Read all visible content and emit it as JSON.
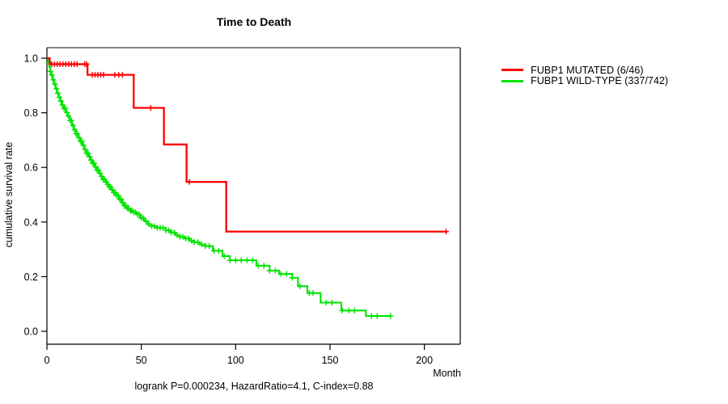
{
  "figure": {
    "title": "Time to Death",
    "x_axis_label": "Month",
    "y_axis_label": "cumulative survival rate",
    "footer": "logrank P=0.000234, HazardRatio=4.1, C-index=0.88"
  },
  "chart_data": {
    "type": "line",
    "subtype": "kaplan-meier-step-curves",
    "title": "Time to Death",
    "xlabel": "Month",
    "ylabel": "cumulative survival rate",
    "annotation": "logrank P=0.000234, HazardRatio=4.1, C-index=0.88",
    "xlim": [
      0,
      219
    ],
    "ylim": [
      0,
      1
    ],
    "xticks": [
      0,
      50,
      100,
      150,
      200
    ],
    "yticks": [
      "0.0",
      "0.2",
      "0.4",
      "0.6",
      "0.8",
      "1.0"
    ],
    "grid": false,
    "legend_position": "right-outside",
    "frame_colors": {
      "top": "#848484",
      "right": "#3f3f3f",
      "left": "#000000",
      "bottom": "#000000"
    },
    "series": [
      {
        "name": "FUBP1 MUTATED (6/46)",
        "color": "#ff0000",
        "end_month": 212,
        "steps": [
          [
            0,
            1.0
          ],
          [
            1.5,
            0.978
          ],
          [
            21.5,
            0.939
          ],
          [
            46,
            0.818
          ],
          [
            62,
            0.684
          ],
          [
            74,
            0.547
          ],
          [
            95,
            0.365
          ]
        ],
        "censor_months": [
          2.5,
          4,
          5.5,
          7,
          8.5,
          10,
          11.5,
          13,
          14.5,
          16,
          20,
          21,
          24,
          25.5,
          27,
          28.5,
          30,
          36,
          38,
          40,
          55,
          75.5,
          211.5
        ]
      },
      {
        "name": "FUBP1 WILD-TYPE (337/742)",
        "color": "#00e400",
        "end_month": 182.5,
        "steps": [
          [
            0,
            1.0
          ],
          [
            0.6,
            0.985
          ],
          [
            1.2,
            0.968
          ],
          [
            1.8,
            0.952
          ],
          [
            2.4,
            0.938
          ],
          [
            3.1,
            0.921
          ],
          [
            3.8,
            0.905
          ],
          [
            4.6,
            0.888
          ],
          [
            5.4,
            0.872
          ],
          [
            6.3,
            0.857
          ],
          [
            7.2,
            0.843
          ],
          [
            8.1,
            0.829
          ],
          [
            9.0,
            0.816
          ],
          [
            10.0,
            0.801
          ],
          [
            11.0,
            0.788
          ],
          [
            12.1,
            0.772
          ],
          [
            13.2,
            0.754
          ],
          [
            14.3,
            0.738
          ],
          [
            15.4,
            0.723
          ],
          [
            16.5,
            0.709
          ],
          [
            17.6,
            0.695
          ],
          [
            18.7,
            0.681
          ],
          [
            19.8,
            0.666
          ],
          [
            20.9,
            0.652
          ],
          [
            22.0,
            0.639
          ],
          [
            23.1,
            0.627
          ],
          [
            24.2,
            0.615
          ],
          [
            25.3,
            0.602
          ],
          [
            26.4,
            0.59
          ],
          [
            27.5,
            0.578
          ],
          [
            28.6,
            0.567
          ],
          [
            29.7,
            0.556
          ],
          [
            30.8,
            0.547
          ],
          [
            31.9,
            0.538
          ],
          [
            33.0,
            0.528
          ],
          [
            34.1,
            0.518
          ],
          [
            35.2,
            0.508
          ],
          [
            36.5,
            0.497
          ],
          [
            38.0,
            0.483
          ],
          [
            39.5,
            0.471
          ],
          [
            41.0,
            0.46
          ],
          [
            42.5,
            0.45
          ],
          [
            44.0,
            0.442
          ],
          [
            45.5,
            0.436
          ],
          [
            47.5,
            0.428
          ],
          [
            49.5,
            0.415
          ],
          [
            51.5,
            0.403
          ],
          [
            53.5,
            0.392
          ],
          [
            55.5,
            0.385
          ],
          [
            58.0,
            0.379
          ],
          [
            63.0,
            0.37
          ],
          [
            65.5,
            0.362
          ],
          [
            68.0,
            0.352
          ],
          [
            70.5,
            0.346
          ],
          [
            73.0,
            0.34
          ],
          [
            75.5,
            0.332
          ],
          [
            78.0,
            0.326
          ],
          [
            81.0,
            0.318
          ],
          [
            84.0,
            0.312
          ],
          [
            88.0,
            0.295
          ],
          [
            93.0,
            0.275
          ],
          [
            97.0,
            0.26
          ],
          [
            111.0,
            0.24
          ],
          [
            118.0,
            0.222
          ],
          [
            123.0,
            0.21
          ],
          [
            130.0,
            0.196
          ],
          [
            133.0,
            0.165
          ],
          [
            138.0,
            0.14
          ],
          [
            145.0,
            0.105
          ],
          [
            156.0,
            0.076
          ],
          [
            169.0,
            0.056
          ]
        ],
        "censor_months": [
          1.0,
          1.8,
          2.6,
          3.4,
          4.2,
          5.0,
          5.8,
          6.6,
          7.4,
          8.2,
          9.0,
          9.8,
          10.6,
          11.4,
          12.2,
          13.0,
          13.8,
          14.6,
          15.4,
          16.2,
          17.0,
          17.8,
          18.6,
          19.4,
          20.2,
          21.0,
          21.8,
          22.6,
          23.4,
          24.2,
          25.0,
          25.8,
          26.6,
          27.4,
          28.2,
          29.0,
          29.8,
          30.6,
          31.4,
          32.2,
          33.0,
          33.8,
          34.6,
          35.4,
          36.2,
          37.0,
          37.8,
          38.6,
          39.4,
          40.2,
          41.0,
          41.8,
          42.6,
          43.4,
          44.2,
          45.0,
          46.0,
          47.0,
          48.0,
          49.0,
          50.0,
          51.0,
          52.5,
          54.0,
          55.5,
          57.0,
          58.5,
          60.0,
          61.5,
          63.0,
          64.5,
          66.0,
          67.5,
          69.0,
          70.5,
          72.0,
          73.5,
          75.0,
          76.5,
          78.0,
          80.0,
          82.0,
          84.0,
          86.0,
          88.5,
          91.0,
          94.0,
          97.0,
          100.0,
          103.0,
          106.0,
          109.0,
          112.0,
          115.0,
          118.0,
          121.0,
          124.0,
          127.0,
          130.0,
          134.0,
          139.0,
          141.0,
          148.0,
          151.0,
          156.5,
          160.0,
          163.0,
          172.0,
          175.0,
          182.0
        ]
      }
    ]
  }
}
